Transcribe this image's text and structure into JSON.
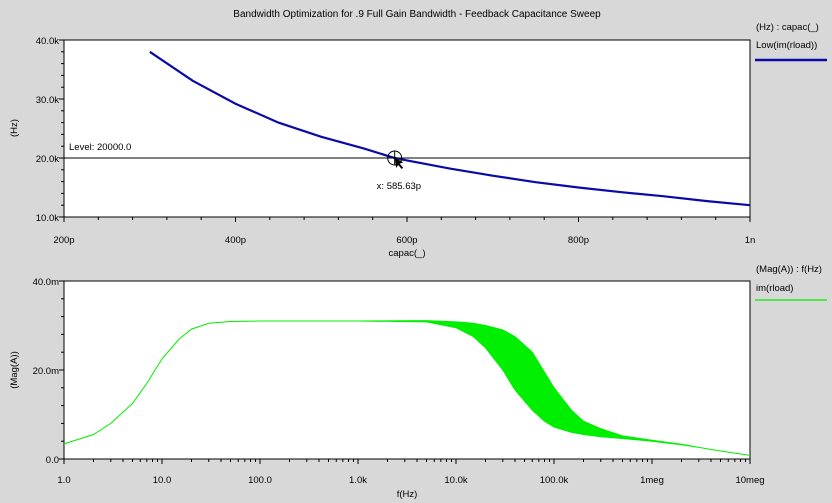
{
  "window": {
    "title": "Bandwidth Optimization for .9 Full Gain Bandwidth - Feedback Capacitance Sweep"
  },
  "colors": {
    "background": "#d8d8d8",
    "plot_area": "#ffffff",
    "blue_trace": "#0a0aa8",
    "green_trace": "#00ee00"
  },
  "chart_data": [
    {
      "type": "line",
      "xlabel": "capac(_)",
      "ylabel": "(Hz)",
      "xlim": [
        2e-10,
        1e-09
      ],
      "ylim": [
        10000,
        40000
      ],
      "x_ticks": [
        {
          "v": 2e-10,
          "label": "200p"
        },
        {
          "v": 4e-10,
          "label": "400p"
        },
        {
          "v": 6e-10,
          "label": "600p"
        },
        {
          "v": 8e-10,
          "label": "800p"
        },
        {
          "v": 1e-09,
          "label": "1n"
        }
      ],
      "y_ticks": [
        {
          "v": 10000,
          "label": "10.0k"
        },
        {
          "v": 20000,
          "label": "20.0k"
        },
        {
          "v": 30000,
          "label": "30.0k"
        },
        {
          "v": 40000,
          "label": "40.0k"
        }
      ],
      "legend": {
        "header": "(Hz) : capac(_)",
        "series_label": "Low(im(rload))"
      },
      "series": [
        {
          "name": "Low(im(rload))",
          "x": [
            3e-10,
            3.5e-10,
            4e-10,
            4.5e-10,
            5e-10,
            5.5e-10,
            5.8563e-10,
            6e-10,
            6.5e-10,
            7e-10,
            7.5e-10,
            8e-10,
            8.5e-10,
            9e-10,
            9.5e-10,
            1e-09
          ],
          "y": [
            38000,
            33100,
            29200,
            26000,
            23600,
            21600,
            20000,
            19600,
            18200,
            17000,
            15900,
            15000,
            14200,
            13500,
            12700,
            12000
          ]
        }
      ],
      "annotations": {
        "level_text": "Level: 20000.0",
        "level_value": 20000,
        "marker_text": "x: 585.63p",
        "marker_x": 5.8563e-10
      }
    },
    {
      "type": "area",
      "xlabel": "f(Hz)",
      "ylabel": "(Mag(A))",
      "x_scale": "log",
      "xlim": [
        1,
        10000000
      ],
      "ylim": [
        0,
        0.04
      ],
      "x_ticks": [
        {
          "v": 1,
          "label": "1.0"
        },
        {
          "v": 10,
          "label": "10.0"
        },
        {
          "v": 100,
          "label": "100.0"
        },
        {
          "v": 1000,
          "label": "1.0k"
        },
        {
          "v": 10000,
          "label": "10.0k"
        },
        {
          "v": 100000,
          "label": "100.0k"
        },
        {
          "v": 1000000,
          "label": "1meg"
        },
        {
          "v": 10000000,
          "label": "10meg"
        }
      ],
      "y_ticks": [
        {
          "v": 0,
          "label": "0.0"
        },
        {
          "v": 0.02,
          "label": "20.0m"
        },
        {
          "v": 0.04,
          "label": "40.0m"
        }
      ],
      "legend": {
        "header": "(Mag(A)) : f(Hz)",
        "series_label": "im(rload)"
      },
      "series": [
        {
          "name": "im(rload)",
          "x": [
            1,
            2,
            3,
            5,
            7,
            10,
            15,
            20,
            30,
            50,
            100,
            1000,
            5000,
            10000,
            15000,
            20000,
            30000,
            40000,
            60000,
            80000,
            100000,
            150000,
            200000,
            300000,
            500000,
            1000000,
            2000000,
            3000000,
            5000000,
            10000000
          ],
          "lower": [
            0.0034,
            0.0055,
            0.008,
            0.0125,
            0.017,
            0.0225,
            0.027,
            0.0292,
            0.0305,
            0.0309,
            0.031,
            0.031,
            0.0308,
            0.0295,
            0.0275,
            0.025,
            0.02,
            0.0155,
            0.011,
            0.0085,
            0.0072,
            0.006,
            0.0055,
            0.005,
            0.0046,
            0.004,
            0.0032,
            0.0026,
            0.0018,
            0.0008
          ],
          "upper": [
            0.0034,
            0.0055,
            0.008,
            0.0125,
            0.017,
            0.0225,
            0.027,
            0.0292,
            0.0305,
            0.0309,
            0.031,
            0.031,
            0.0311,
            0.0308,
            0.0305,
            0.03,
            0.029,
            0.0275,
            0.024,
            0.0195,
            0.016,
            0.011,
            0.0085,
            0.0068,
            0.0052,
            0.0042,
            0.0033,
            0.0026,
            0.0018,
            0.0008
          ]
        }
      ]
    }
  ]
}
